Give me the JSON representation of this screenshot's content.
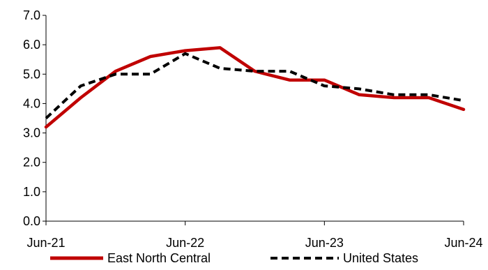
{
  "chart_data": {
    "type": "line",
    "title": "",
    "xlabel": "",
    "ylabel": "",
    "x": [
      "2021-06",
      "2021-09",
      "2021-12",
      "2022-03",
      "2022-06",
      "2022-09",
      "2022-12",
      "2023-03",
      "2023-06",
      "2023-09",
      "2023-12",
      "2024-03",
      "2024-06"
    ],
    "x_tick_labels": [
      "Jun-21",
      "Jun-22",
      "Jun-23",
      "Jun-24"
    ],
    "y_tick_labels": [
      "0.0",
      "1.0",
      "2.0",
      "3.0",
      "4.0",
      "5.0",
      "6.0",
      "7.0"
    ],
    "ylim": [
      0,
      7
    ],
    "grid": false,
    "legend_position": "bottom",
    "series": [
      {
        "name": "East North Central",
        "color": "#c00000",
        "style": "solid",
        "values": [
          3.2,
          4.2,
          5.1,
          5.6,
          5.8,
          5.9,
          5.1,
          4.8,
          4.8,
          4.3,
          4.2,
          4.2,
          3.8
        ]
      },
      {
        "name": "United States",
        "color": "#000000",
        "style": "dashed",
        "values": [
          3.5,
          4.6,
          5.0,
          5.0,
          5.7,
          5.2,
          5.1,
          5.1,
          4.6,
          4.5,
          4.3,
          4.3,
          4.1
        ]
      }
    ]
  }
}
